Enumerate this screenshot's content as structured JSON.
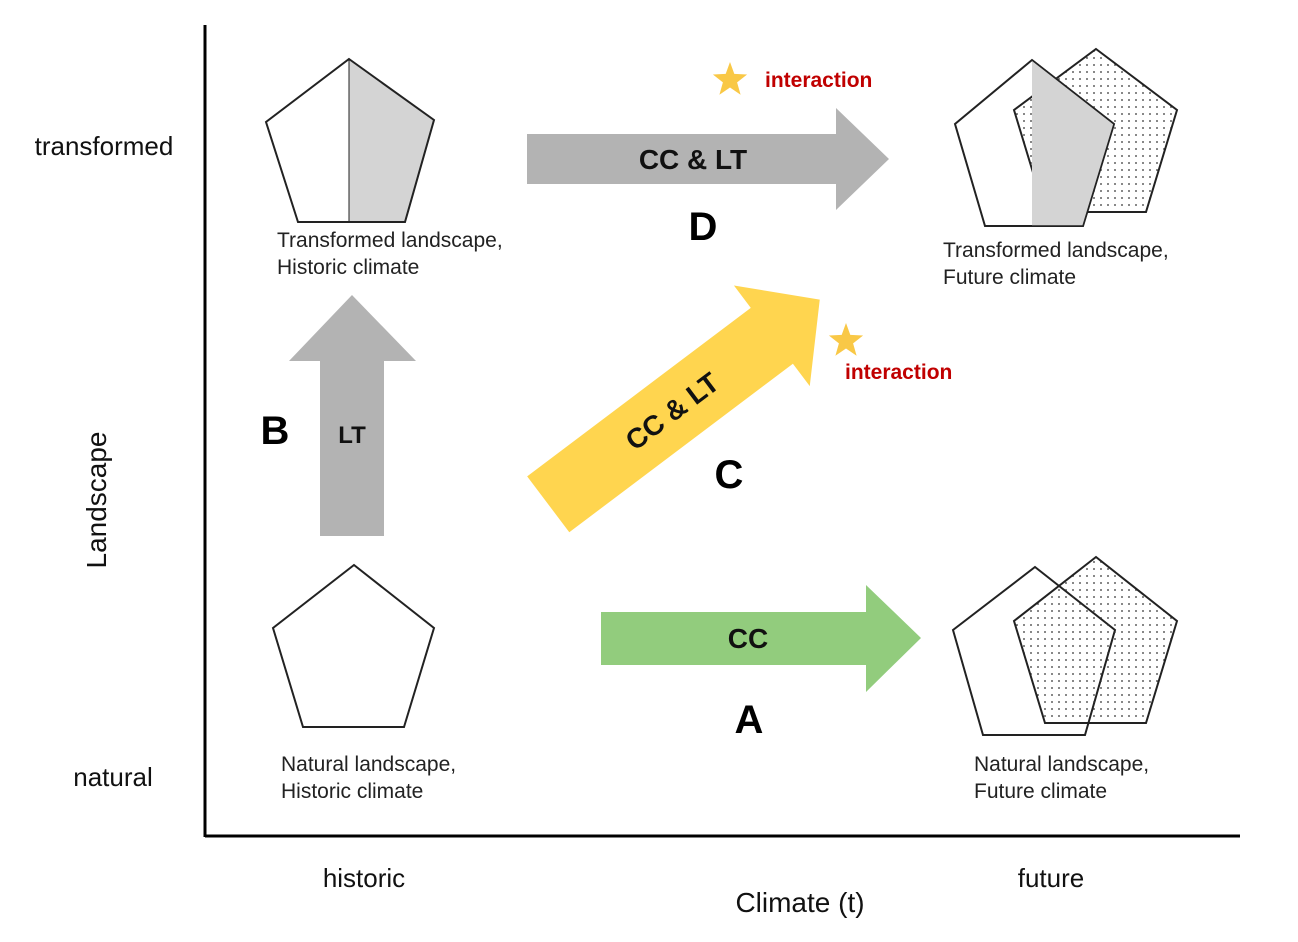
{
  "axes": {
    "y_label": "Landscape",
    "x_label": "Climate (t)",
    "y_ticks": {
      "top": "transformed",
      "bottom": "natural"
    },
    "x_ticks": {
      "left": "historic",
      "right": "future"
    }
  },
  "quadrants": {
    "natural_historic": {
      "line1": "Natural landscape,",
      "line2": "Historic climate"
    },
    "natural_future": {
      "line1": "Natural landscape,",
      "line2": "Future climate"
    },
    "transformed_historic": {
      "line1": "Transformed landscape,",
      "line2": "Historic climate"
    },
    "transformed_future": {
      "line1": "Transformed landscape,",
      "line2": "Future climate"
    }
  },
  "arrows": {
    "A": {
      "letter": "A",
      "label": "CC",
      "color": "#92cc7d"
    },
    "B": {
      "letter": "B",
      "label": "LT",
      "color": "#b3b3b3"
    },
    "C": {
      "letter": "C",
      "label": "CC & LT",
      "color": "#ffd54f"
    },
    "D": {
      "letter": "D",
      "label": "CC & LT",
      "color": "#b3b3b3"
    }
  },
  "interactions": {
    "top": "interaction",
    "middle": "interaction",
    "star_color": "#f9c846"
  },
  "colors": {
    "shaded_half": "#d4d4d4",
    "outline": "#222222"
  }
}
